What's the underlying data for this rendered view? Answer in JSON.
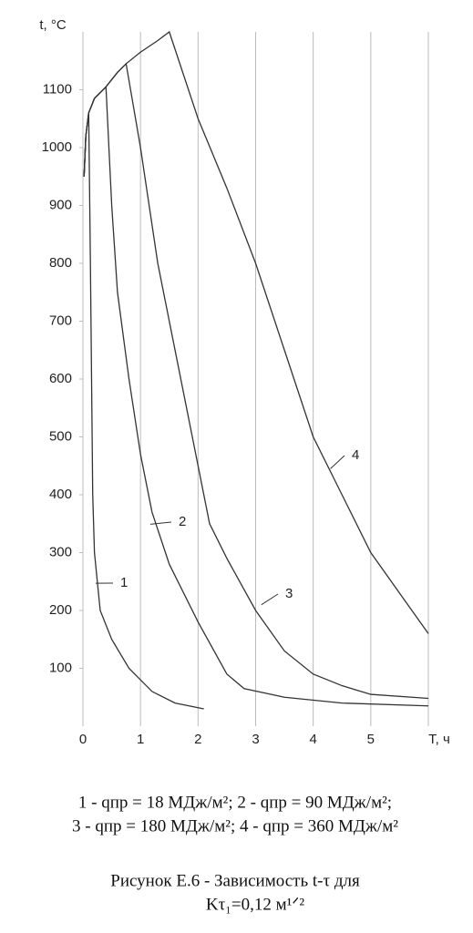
{
  "chart_data": {
    "type": "line",
    "y_label": "t, °C",
    "x_label": "T, ч",
    "xlim": [
      0,
      6
    ],
    "ylim": [
      0,
      1200
    ],
    "xticks": [
      0,
      1,
      2,
      3,
      4,
      5
    ],
    "yticks": [
      100,
      200,
      300,
      400,
      500,
      600,
      700,
      800,
      900,
      1000,
      1100
    ],
    "grid": "vertical",
    "series": [
      {
        "name": "1",
        "color": "#333333",
        "x": [
          0.02,
          0.05,
          0.1,
          0.13,
          0.15,
          0.17,
          0.2,
          0.3,
          0.5,
          0.8,
          1.2,
          1.6,
          2.1
        ],
        "values": [
          950,
          1020,
          1060,
          800,
          600,
          400,
          300,
          200,
          150,
          100,
          60,
          40,
          30
        ]
      },
      {
        "name": "2",
        "color": "#333333",
        "x": [
          0.02,
          0.05,
          0.1,
          0.2,
          0.4,
          0.5,
          0.6,
          0.8,
          1.0,
          1.2,
          1.5,
          2.0,
          2.5,
          2.8,
          3.5,
          4.5,
          6
        ],
        "values": [
          950,
          1020,
          1060,
          1085,
          1105,
          900,
          750,
          600,
          470,
          370,
          280,
          180,
          90,
          65,
          50,
          40,
          35
        ]
      },
      {
        "name": "3",
        "color": "#333333",
        "x": [
          0.02,
          0.05,
          0.1,
          0.2,
          0.4,
          0.6,
          0.75,
          1.0,
          1.3,
          1.7,
          1.9,
          2.1,
          2.2,
          2.5,
          3,
          3.5,
          4,
          4.5,
          5,
          6
        ],
        "values": [
          950,
          1020,
          1060,
          1085,
          1105,
          1130,
          1145,
          1000,
          800,
          600,
          500,
          400,
          350,
          290,
          200,
          130,
          90,
          70,
          55,
          48
        ]
      },
      {
        "name": "4",
        "color": "#333333",
        "x": [
          0.02,
          0.05,
          0.1,
          0.2,
          0.4,
          0.6,
          0.75,
          1.0,
          1.3,
          1.5,
          2,
          2.5,
          3,
          3.5,
          4,
          4.5,
          5,
          5.5,
          6
        ],
        "values": [
          950,
          1020,
          1060,
          1085,
          1105,
          1130,
          1145,
          1165,
          1185,
          1200,
          1050,
          930,
          800,
          650,
          500,
          400,
          300,
          230,
          160
        ]
      }
    ],
    "caption": [
      "1 - qпр = 18 МДж/м²; 2 - qпр = 90 МДж/м²;",
      "3 - qпр = 180 МДж/м²; 4 - qпр = 360 МДж/м²",
      "Рисунок Е.6  -  Зависимость  t-τ  для",
      "Kτ₁=0,12 м¹ᐟ²"
    ]
  }
}
